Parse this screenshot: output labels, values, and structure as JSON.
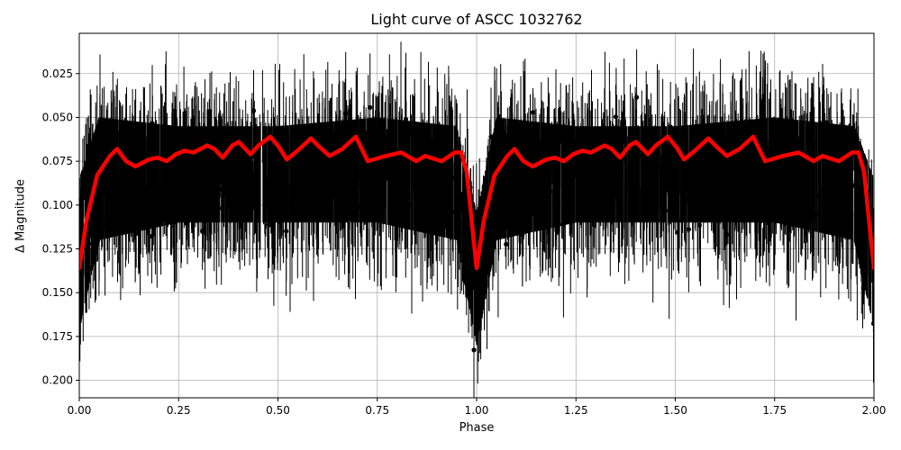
{
  "chart_data": {
    "type": "scatter",
    "title": "Light curve of ASCC 1032762",
    "xlabel": "Phase",
    "ylabel": "Δ Magnitude",
    "xlim": [
      0.0,
      2.0
    ],
    "ylim": [
      0.21,
      0.002
    ],
    "y_inverted": true,
    "grid": true,
    "legend": null,
    "x_ticks": [
      "0.00",
      "0.25",
      "0.50",
      "0.75",
      "1.00",
      "1.25",
      "1.50",
      "1.75",
      "2.00"
    ],
    "y_ticks": [
      "0.025",
      "0.050",
      "0.075",
      "0.100",
      "0.125",
      "0.150",
      "0.175",
      "0.200"
    ],
    "series": [
      {
        "name": "observations",
        "style": "black points with vertical error bars",
        "color": "#000000",
        "description": "Dense phase-folded photometry, bulk spanning roughly 0.04–0.13 mag with outliers to 0.002–0.21; mirrored over two cycles",
        "approx_envelope": {
          "phase": [
            0.0,
            0.05,
            0.25,
            0.5,
            0.75,
            0.95,
            1.0,
            1.05,
            1.25,
            1.5,
            1.75,
            1.95,
            2.0
          ],
          "upper": [
            0.07,
            0.035,
            0.04,
            0.04,
            0.035,
            0.04,
            0.09,
            0.035,
            0.04,
            0.04,
            0.035,
            0.04,
            0.07
          ],
          "lower": [
            0.19,
            0.14,
            0.13,
            0.13,
            0.13,
            0.14,
            0.2,
            0.14,
            0.13,
            0.13,
            0.13,
            0.14,
            0.19
          ]
        }
      },
      {
        "name": "smoothed model",
        "style": "thick red line",
        "color": "#ff0000",
        "x": [
          0.0,
          0.018,
          0.045,
          0.077,
          0.095,
          0.118,
          0.141,
          0.175,
          0.197,
          0.22,
          0.243,
          0.265,
          0.288,
          0.322,
          0.34,
          0.361,
          0.385,
          0.401,
          0.431,
          0.451,
          0.481,
          0.503,
          0.522,
          0.549,
          0.583,
          0.605,
          0.63,
          0.662,
          0.696,
          0.726,
          0.771,
          0.81,
          0.848,
          0.87,
          0.912,
          0.945,
          0.961,
          0.975,
          0.989,
          1.0,
          1.018,
          1.045,
          1.077,
          1.095,
          1.118,
          1.141,
          1.175,
          1.197,
          1.22,
          1.243,
          1.265,
          1.288,
          1.322,
          1.34,
          1.361,
          1.385,
          1.401,
          1.431,
          1.451,
          1.481,
          1.503,
          1.522,
          1.549,
          1.583,
          1.605,
          1.63,
          1.662,
          1.696,
          1.726,
          1.771,
          1.81,
          1.848,
          1.87,
          1.912,
          1.945,
          1.961,
          1.975,
          1.989,
          2.0
        ],
        "y": [
          0.136,
          0.109,
          0.083,
          0.072,
          0.068,
          0.075,
          0.078,
          0.074,
          0.073,
          0.075,
          0.071,
          0.069,
          0.07,
          0.066,
          0.068,
          0.073,
          0.066,
          0.064,
          0.071,
          0.066,
          0.061,
          0.067,
          0.074,
          0.069,
          0.062,
          0.067,
          0.072,
          0.068,
          0.061,
          0.075,
          0.072,
          0.07,
          0.075,
          0.072,
          0.075,
          0.07,
          0.07,
          0.081,
          0.112,
          0.136,
          0.109,
          0.083,
          0.072,
          0.068,
          0.075,
          0.078,
          0.074,
          0.073,
          0.075,
          0.071,
          0.069,
          0.07,
          0.066,
          0.068,
          0.073,
          0.066,
          0.064,
          0.071,
          0.066,
          0.061,
          0.067,
          0.074,
          0.069,
          0.062,
          0.067,
          0.072,
          0.068,
          0.061,
          0.075,
          0.072,
          0.07,
          0.075,
          0.072,
          0.075,
          0.07,
          0.07,
          0.081,
          0.112,
          0.136
        ]
      }
    ],
    "annotations": [
      "Primary eclipse dip at phase 0.0/1.0/2.0 reaching ~0.136 mag"
    ]
  },
  "axes": {
    "x_tick_labels": [
      "0.00",
      "0.25",
      "0.50",
      "0.75",
      "1.00",
      "1.25",
      "1.50",
      "1.75",
      "2.00"
    ],
    "y_tick_labels": [
      "0.025",
      "0.050",
      "0.075",
      "0.100",
      "0.125",
      "0.150",
      "0.175",
      "0.200"
    ]
  },
  "colors": {
    "data_points": "#000000",
    "model_line": "#ff0000",
    "grid": "#b0b0b0",
    "frame": "#000000"
  }
}
